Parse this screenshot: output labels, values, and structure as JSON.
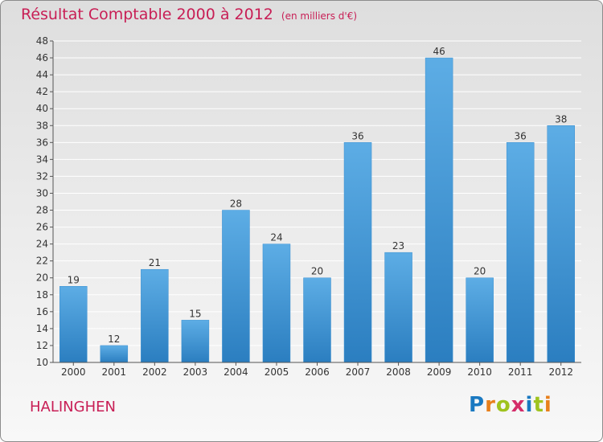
{
  "page": {
    "title": "Résultat Comptable 2000 à 2012",
    "subtitle": "(en milliers d'€)",
    "commune": "HALINGHEN",
    "brand": {
      "letters": [
        "P",
        "r",
        "o",
        "x",
        "i",
        "t",
        "i"
      ],
      "colors": [
        "#1a79c1",
        "#e8801c",
        "#9fc31e",
        "#d42d6a",
        "#1a79c1",
        "#9fc31e",
        "#e8801c"
      ]
    }
  },
  "chart_data": {
    "type": "bar",
    "title": "Résultat Comptable 2000 à 2012",
    "subtitle": "(en milliers d'€)",
    "categories": [
      "2000",
      "2001",
      "2002",
      "2003",
      "2004",
      "2005",
      "2006",
      "2007",
      "2008",
      "2009",
      "2010",
      "2011",
      "2012"
    ],
    "values": [
      19,
      12,
      21,
      15,
      28,
      24,
      20,
      36,
      23,
      46,
      20,
      36,
      38
    ],
    "ylim": [
      10,
      48
    ],
    "ytick_step": 2,
    "grid": true,
    "colors": {
      "bar_light": "#5dade5",
      "bar_dark": "#2b7ec0",
      "grid": "#ffffff",
      "axis": "#555555",
      "text": "#333333"
    }
  }
}
